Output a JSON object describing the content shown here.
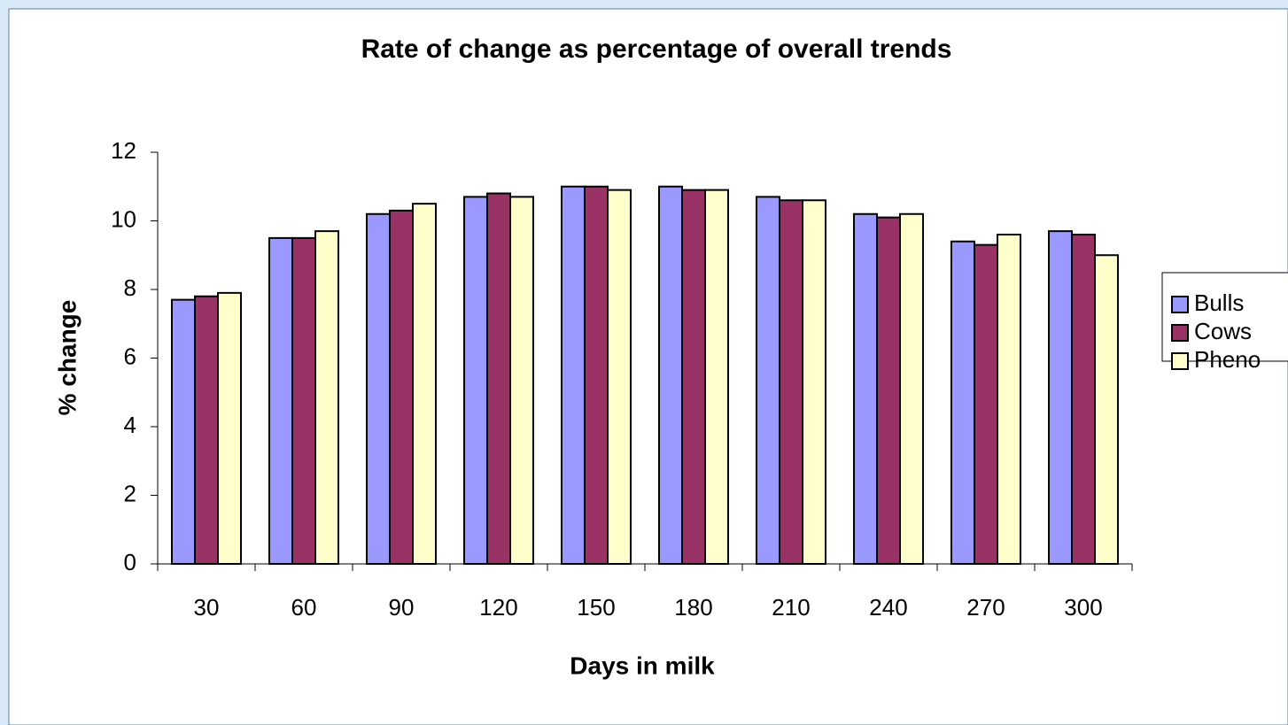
{
  "chart_data": {
    "type": "bar",
    "title": "Rate of change as percentage of overall trends",
    "x_label": "Days in milk",
    "y_label": "% change",
    "categories": [
      "30",
      "60",
      "90",
      "120",
      "150",
      "180",
      "210",
      "240",
      "270",
      "300"
    ],
    "series": [
      {
        "name": "Bulls",
        "color": "#9999ff",
        "values": [
          7.7,
          9.5,
          10.2,
          10.7,
          11.0,
          11.0,
          10.7,
          10.2,
          9.4,
          9.7
        ]
      },
      {
        "name": "Cows",
        "color": "#993366",
        "values": [
          7.8,
          9.5,
          10.3,
          10.8,
          11.0,
          10.9,
          10.6,
          10.1,
          9.3,
          9.6
        ]
      },
      {
        "name": "Pheno",
        "color": "#ffffcc",
        "values": [
          7.9,
          9.7,
          10.5,
          10.7,
          10.9,
          10.9,
          10.6,
          10.2,
          9.6,
          9.0
        ]
      }
    ],
    "ylim": [
      0,
      12
    ],
    "yticks": [
      0,
      2,
      4,
      6,
      8,
      10,
      12
    ],
    "grid": false,
    "legend": "right"
  }
}
